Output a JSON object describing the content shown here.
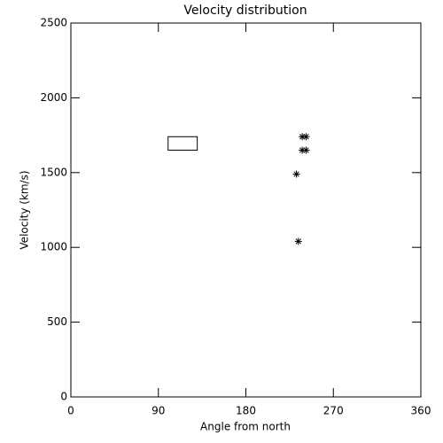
{
  "chart_data": {
    "type": "scatter",
    "title": "Velocity distribution",
    "xlabel": "Angle from north",
    "ylabel": "Velocity (km/s)",
    "x": [
      238,
      242,
      238,
      242,
      232,
      234
    ],
    "values": [
      1740,
      1740,
      1650,
      1650,
      1490,
      1040
    ],
    "marker": "asterisk",
    "color": "#000000",
    "rectangle": {
      "x": [
        100,
        130
      ],
      "y": [
        1650,
        1740
      ]
    },
    "xlim": [
      0,
      360
    ],
    "xticks": [
      0,
      90,
      180,
      270,
      360
    ],
    "ylim": [
      0,
      2500
    ],
    "yticks": [
      0,
      500,
      1000,
      1500,
      2000,
      2500
    ]
  }
}
